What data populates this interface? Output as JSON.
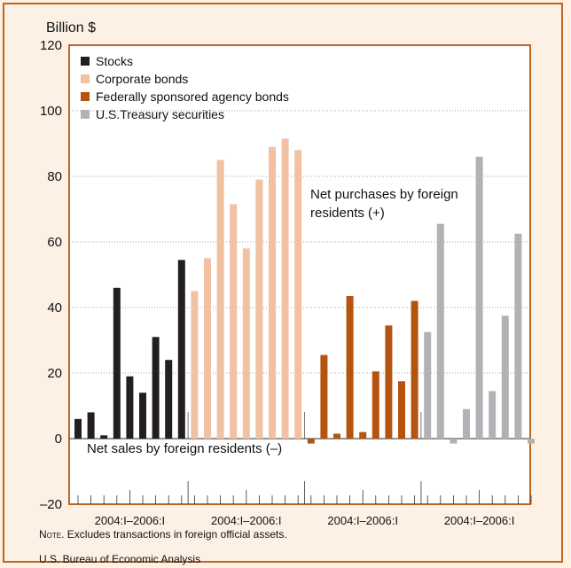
{
  "chart_data": {
    "type": "bar",
    "ylabel": "Billion $",
    "ylim": [
      -20,
      120
    ],
    "yticks": [
      -20,
      0,
      20,
      40,
      60,
      80,
      100,
      120
    ],
    "ytick_labels": [
      "–20",
      "0",
      "20",
      "40",
      "60",
      "80",
      "100",
      "120"
    ],
    "grid": "horizontal dotted",
    "legend_position": "top-left",
    "groups": [
      "2004:I–2006:I",
      "2004:I–2006:I",
      "2004:I–2006:I",
      "2004:I–2006:I"
    ],
    "series": [
      {
        "name": "Stocks",
        "color": "#231f20",
        "values": [
          6,
          8,
          1,
          46,
          19,
          14,
          31,
          24,
          54.5
        ]
      },
      {
        "name": "Corporate bonds",
        "color": "#f1c1a1",
        "values": [
          45,
          55,
          85,
          71.5,
          58,
          79,
          89,
          91.5,
          88
        ]
      },
      {
        "name": "Federally sponsored agency bonds",
        "color": "#b5530f",
        "values": [
          -1.5,
          25.5,
          1.5,
          43.5,
          2,
          20.5,
          34.5,
          17.5,
          42
        ]
      },
      {
        "name": "U.S.Treasury securities",
        "color": "#b4b1b6",
        "values": [
          32.5,
          65.5,
          -1.5,
          9,
          86,
          14.5,
          37.5,
          62.5,
          -1.5
        ]
      }
    ],
    "annotations": [
      {
        "text_lines": [
          "Net purchases by foreign",
          "residents (+)"
        ]
      },
      {
        "text": "Net sales by foreign residents (–)"
      }
    ]
  },
  "note_prefix": "Note",
  "note_text": ". Excludes transactions in foreign official assets.",
  "source": "U.S. Bureau of Economic Analysis",
  "colors": {
    "frame": "#c0651f",
    "background": "#fdf1e6",
    "plot_background": "#ffffff"
  }
}
